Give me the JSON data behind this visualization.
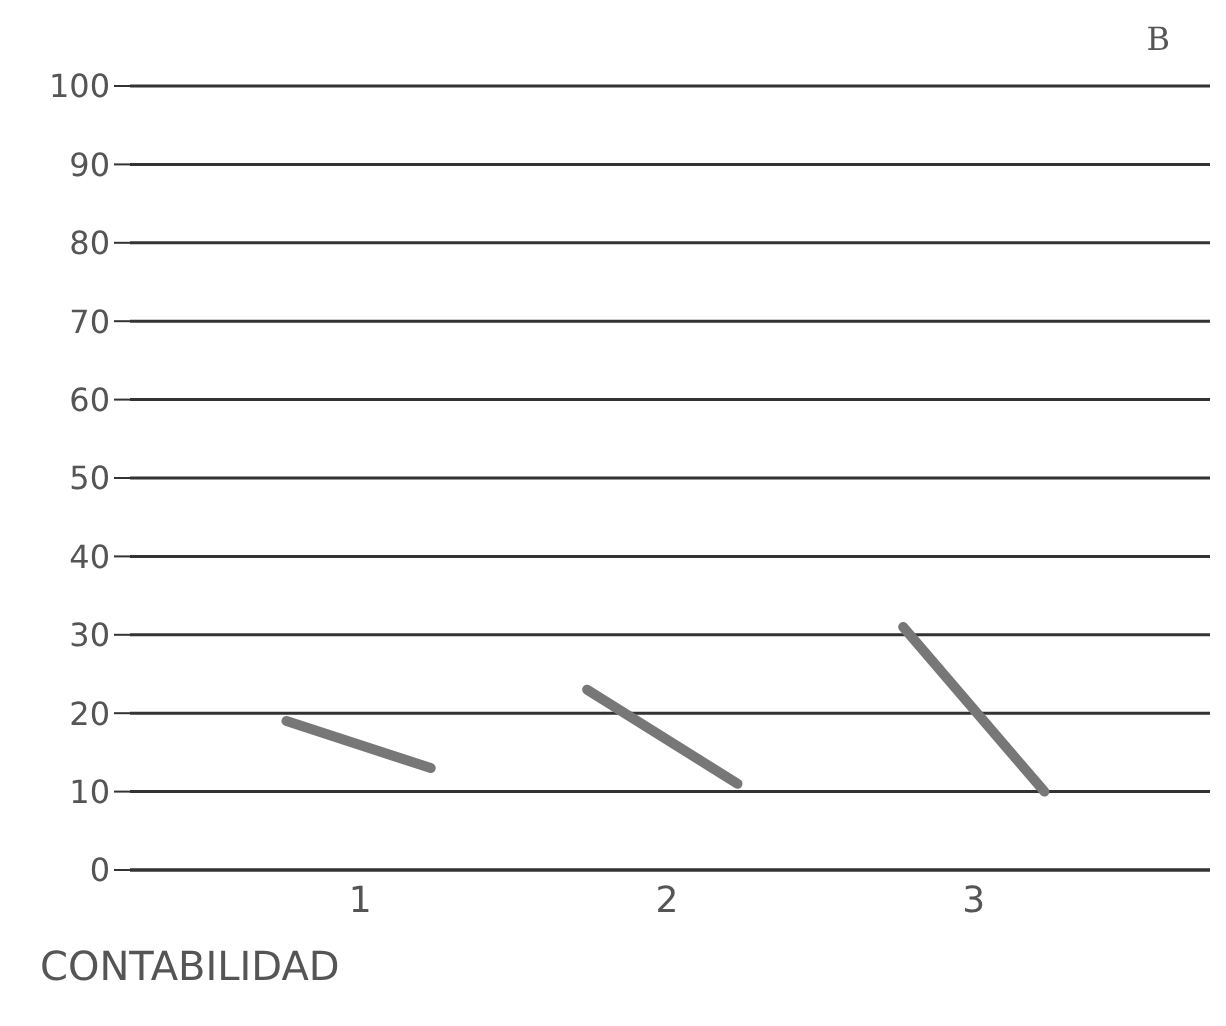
{
  "chart_data": {
    "type": "line",
    "title": "B",
    "xlabel": "CONTABILIDAD",
    "series": [
      {
        "x": [
          0.76,
          1.23
        ],
        "values": [
          19,
          13
        ],
        "color": "#777777"
      },
      {
        "x": [
          1.74,
          2.23
        ],
        "values": [
          23,
          11
        ],
        "color": "#777777"
      },
      {
        "x": [
          2.77,
          3.23
        ],
        "values": [
          31,
          10
        ],
        "color": "#777777"
      }
    ],
    "xlim": [
      0.25,
      3.77
    ],
    "xticks": [
      1,
      2,
      3
    ],
    "ylim": [
      0,
      100
    ],
    "yticks": [
      0,
      10,
      20,
      30,
      40,
      50,
      60,
      70,
      80,
      90,
      100
    ],
    "grid": "y",
    "marker": "none",
    "line_style": "solid"
  }
}
